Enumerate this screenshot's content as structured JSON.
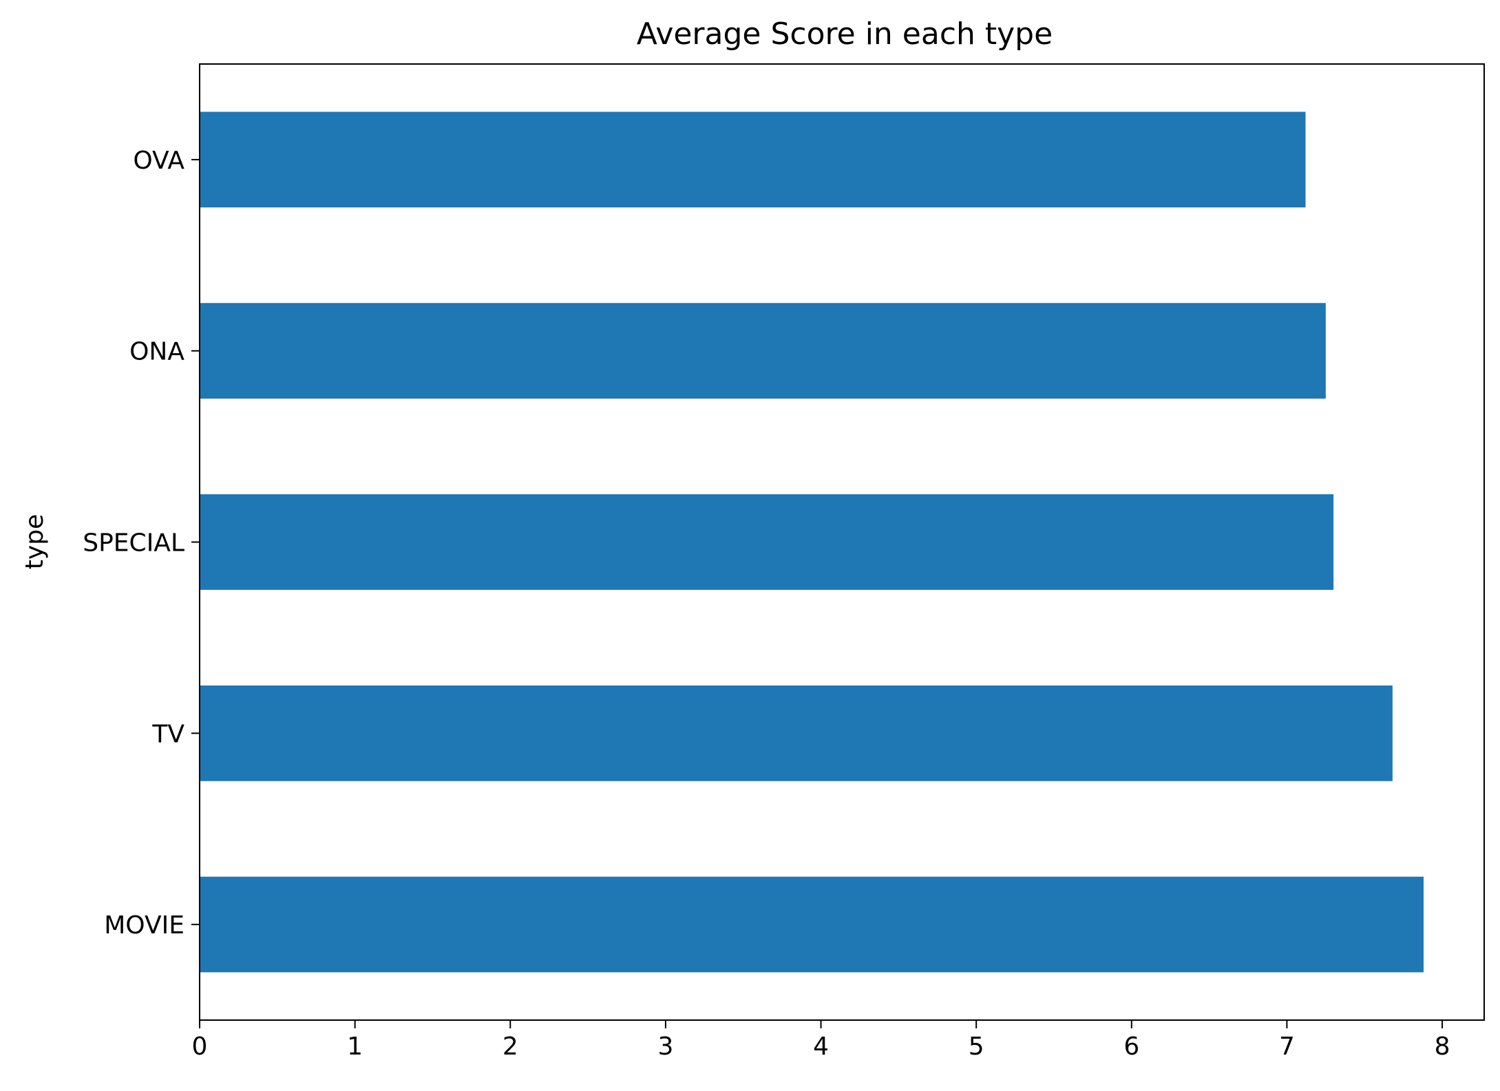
{
  "chart_data": {
    "type": "bar",
    "orientation": "horizontal",
    "title": "Average Score in each type",
    "xlabel": "",
    "ylabel": "type",
    "categories": [
      "MOVIE",
      "TV",
      "SPECIAL",
      "ONA",
      "OVA"
    ],
    "values": [
      7.88,
      7.68,
      7.3,
      7.25,
      7.12
    ],
    "xlim": [
      0,
      8.27
    ],
    "xticks": [
      0,
      1,
      2,
      3,
      4,
      5,
      6,
      7,
      8
    ],
    "grid": false,
    "legend": "none",
    "bar_color": "#1f77b4"
  }
}
